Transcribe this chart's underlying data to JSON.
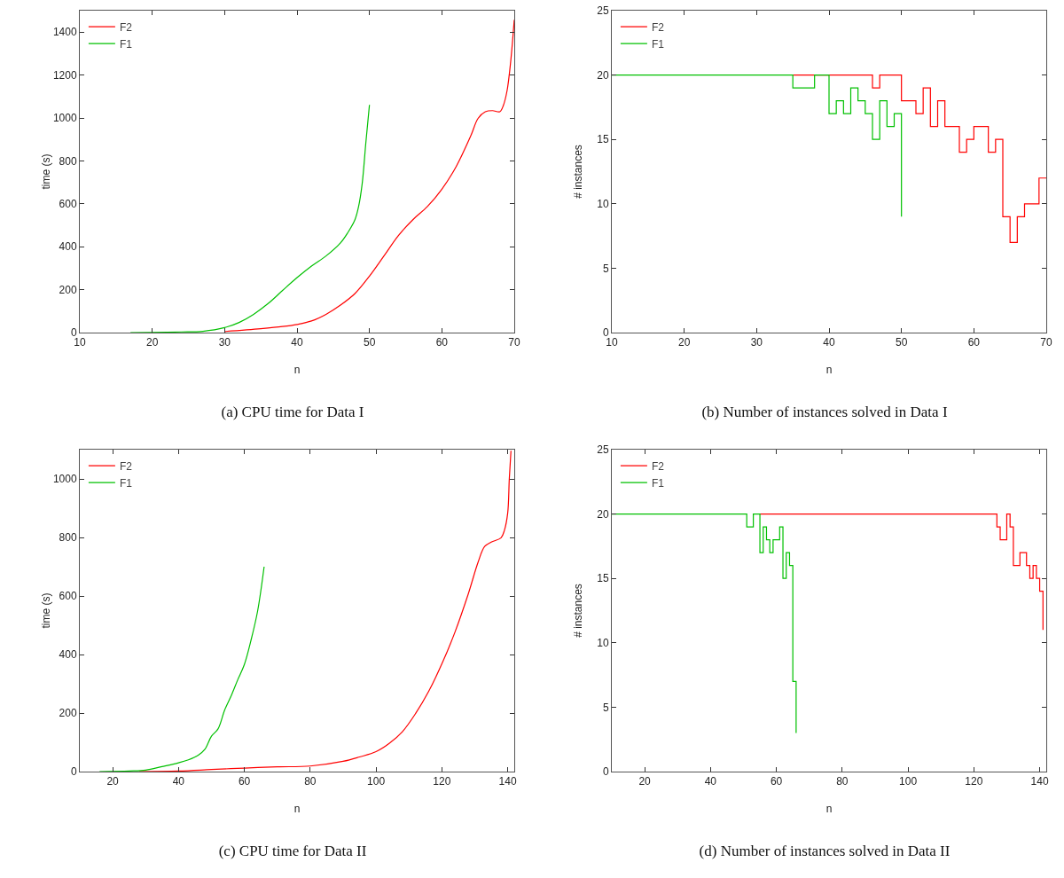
{
  "chart_data": [
    {
      "type": "line",
      "title": "(a) CPU time for Data I",
      "xlabel": "n",
      "ylabel": "time (s)",
      "xlim": [
        10,
        70
      ],
      "xticks": [
        10,
        20,
        30,
        40,
        50,
        60,
        70
      ],
      "ylim": [
        0,
        1500
      ],
      "yticks": [
        0,
        200,
        400,
        600,
        800,
        1000,
        1200,
        1400
      ],
      "grid": false,
      "legend": "top left",
      "marker": "none",
      "series": [
        {
          "name": "F2",
          "color": "#ff0000",
          "x": [
            30,
            35,
            38,
            40,
            42,
            44,
            46,
            48,
            50,
            52,
            54,
            56,
            58,
            60,
            62,
            64,
            65,
            66,
            67,
            68,
            68.5,
            69,
            69.5,
            70
          ],
          "values": [
            5,
            18,
            28,
            38,
            54,
            85,
            128,
            182,
            263,
            357,
            452,
            526,
            587,
            668,
            775,
            917,
            998,
            1029,
            1034,
            1029,
            1059,
            1126,
            1261,
            1457
          ]
        },
        {
          "name": "F1",
          "color": "#00c000",
          "x": [
            17,
            20,
            24,
            27,
            30,
            32,
            34,
            36,
            38,
            40,
            42,
            44,
            46,
            47,
            48,
            48.5,
            49,
            49.5,
            50
          ],
          "values": [
            0,
            1,
            3,
            6,
            23,
            47,
            85,
            135,
            196,
            256,
            310,
            357,
            418,
            465,
            526,
            587,
            695,
            883,
            1061
          ]
        }
      ]
    },
    {
      "type": "step",
      "title": "(b) Number of instances solved in Data I",
      "xlabel": "n",
      "ylabel": "# instances",
      "xlim": [
        10,
        70
      ],
      "xticks": [
        10,
        20,
        30,
        40,
        50,
        60,
        70
      ],
      "ylim": [
        0,
        25
      ],
      "yticks": [
        0,
        5,
        10,
        15,
        20,
        25
      ],
      "grid": false,
      "legend": "top left",
      "marker": "none",
      "series": [
        {
          "name": "F2",
          "color": "#ff0000",
          "x": [
            35,
            46,
            47,
            50,
            52,
            53,
            54,
            55,
            56,
            58,
            59,
            60,
            62,
            63,
            64,
            65,
            66,
            67,
            69,
            70
          ],
          "values": [
            20,
            19,
            20,
            18,
            17,
            19,
            16,
            18,
            16,
            14,
            15,
            16,
            14,
            15,
            9,
            7,
            9,
            10,
            12,
            12
          ]
        },
        {
          "name": "F1",
          "color": "#00c000",
          "x": [
            10,
            35,
            38,
            40,
            41,
            42,
            43,
            44,
            45,
            46,
            47,
            48,
            49,
            50
          ],
          "values": [
            20,
            19,
            20,
            17,
            18,
            17,
            19,
            18,
            17,
            15,
            18,
            16,
            17,
            9
          ]
        }
      ]
    },
    {
      "type": "line",
      "title": "(c) CPU time for Data II",
      "xlabel": "n",
      "ylabel": "time (s)",
      "xlim": [
        10,
        142
      ],
      "xticks": [
        20,
        40,
        60,
        80,
        100,
        120,
        140
      ],
      "ylim": [
        0,
        1100
      ],
      "yticks": [
        0,
        200,
        400,
        600,
        800,
        1000
      ],
      "grid": false,
      "legend": "top left",
      "marker": "none",
      "series": [
        {
          "name": "F2",
          "color": "#ff0000",
          "x": [
            28,
            40,
            50,
            60,
            70,
            80,
            90,
            95,
            100,
            104,
            108,
            112,
            116,
            120,
            124,
            128,
            131,
            133,
            135,
            138,
            139,
            140,
            140.5,
            141
          ],
          "values": [
            0,
            2,
            7,
            12,
            16,
            19,
            35,
            50,
            68,
            96,
            136,
            198,
            274,
            368,
            477,
            606,
            715,
            769,
            784,
            799,
            824,
            883,
            1002,
            1096
          ]
        },
        {
          "name": "F1",
          "color": "#00c000",
          "x": [
            16,
            25,
            30,
            35,
            40,
            43,
            46,
            48,
            50,
            52,
            54,
            56,
            58,
            60,
            62,
            64,
            66
          ],
          "values": [
            0,
            2,
            5,
            17,
            30,
            40,
            56,
            76,
            121,
            146,
            210,
            259,
            314,
            366,
            448,
            547,
            700
          ]
        }
      ]
    },
    {
      "type": "step",
      "title": "(d) Number of instances solved in Data II",
      "xlabel": "n",
      "ylabel": "# instances",
      "xlim": [
        10,
        142
      ],
      "xticks": [
        20,
        40,
        60,
        80,
        100,
        120,
        140
      ],
      "ylim": [
        0,
        25
      ],
      "yticks": [
        0,
        5,
        10,
        15,
        20,
        25
      ],
      "grid": false,
      "legend": "top left",
      "marker": "none",
      "series": [
        {
          "name": "F2",
          "color": "#ff0000",
          "x": [
            55,
            127,
            128,
            130,
            131,
            132,
            134,
            136,
            137,
            138,
            139,
            140,
            141
          ],
          "values": [
            20,
            19,
            18,
            20,
            19,
            16,
            17,
            16,
            15,
            16,
            15,
            14,
            11
          ]
        },
        {
          "name": "F1",
          "color": "#00c000",
          "x": [
            10,
            51,
            53,
            55,
            56,
            57,
            58,
            59,
            61,
            62,
            63,
            64,
            65,
            66
          ],
          "values": [
            20,
            19,
            20,
            17,
            19,
            18,
            17,
            18,
            19,
            15,
            17,
            16,
            7,
            3
          ]
        }
      ]
    }
  ]
}
